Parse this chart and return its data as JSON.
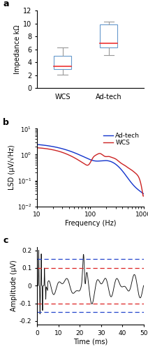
{
  "panel_a": {
    "wcs": {
      "whislo": 2.1,
      "q1": 3.0,
      "med": 3.4,
      "q3": 5.0,
      "whishi": 6.3
    },
    "adtech": {
      "whislo": 5.1,
      "q1": 6.3,
      "med": 6.9,
      "q3": 9.8,
      "whishi": 10.3
    },
    "ylabel": "Impedance kΩ",
    "xlabels": [
      "WCS",
      "Ad-tech"
    ],
    "ylim": [
      0,
      12
    ],
    "yticks": [
      0,
      2,
      4,
      6,
      8,
      10,
      12
    ],
    "box_color": "#6699cc",
    "median_color": "#ee3333"
  },
  "panel_b": {
    "ylabel": "LSD (μV/√Hz)",
    "xlabel": "Frequency (Hz)",
    "adtech_color": "#1133cc",
    "wcs_color": "#cc2222",
    "xlim": [
      10,
      1000
    ],
    "ylim": [
      0.01,
      10
    ]
  },
  "panel_c": {
    "ylabel": "Amplitude (μV)",
    "xlabel": "Time (ms)",
    "xlim": [
      0,
      50
    ],
    "ylim": [
      -0.22,
      0.22
    ],
    "yticks": [
      -0.2,
      -0.1,
      0.0,
      0.1,
      0.2
    ],
    "blue_dashed": 0.15,
    "red_dashed": 0.1,
    "blue_color": "#2244cc",
    "red_color": "#dd2222",
    "signal_color": "#111111"
  }
}
